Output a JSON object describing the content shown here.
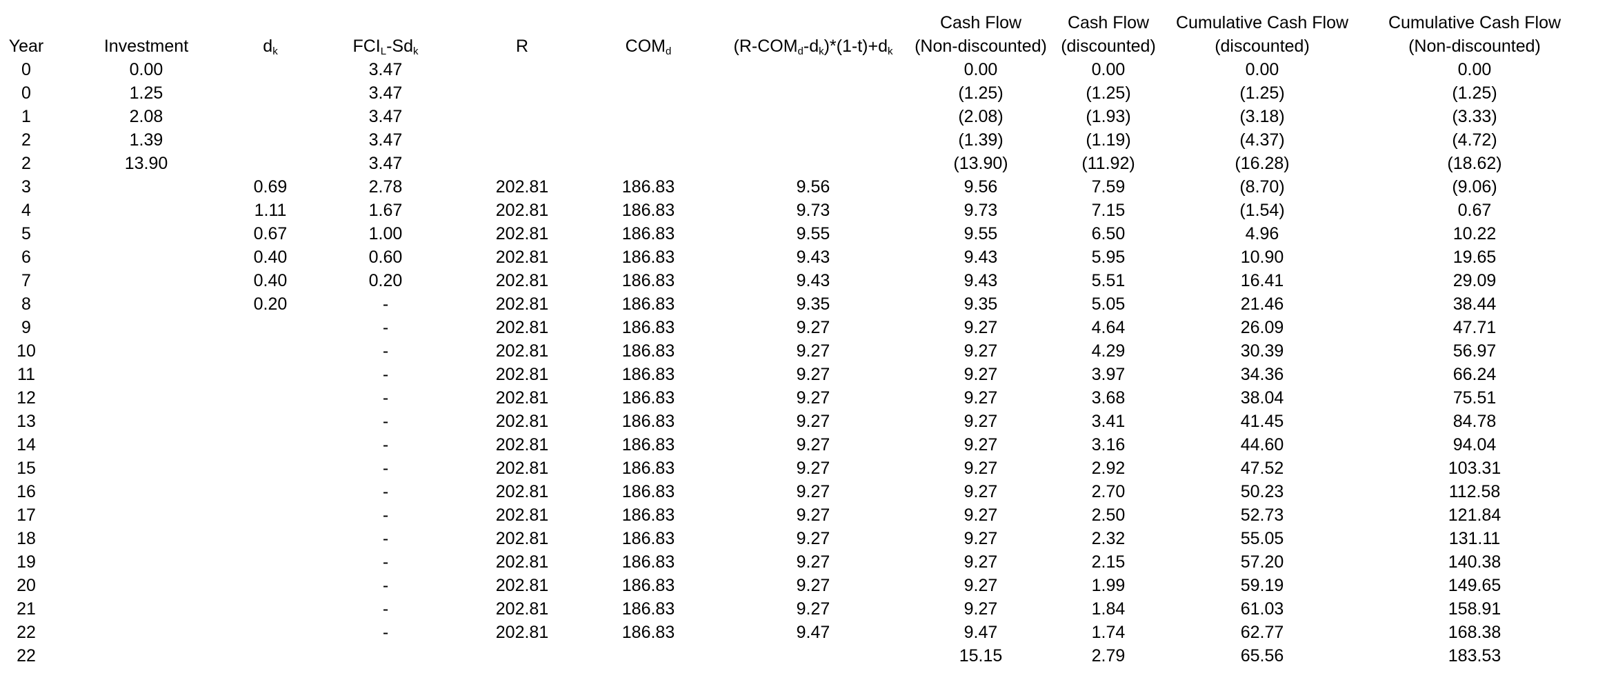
{
  "headers": {
    "year": "Year",
    "investment": "Investment",
    "dk": {
      "main": "d",
      "sub": "k"
    },
    "fcil": {
      "p1": "FCI",
      "s1": "L",
      "p2": "-Sd",
      "s2": "k"
    },
    "r": "R",
    "comd": {
      "main": "COM",
      "sub": "d"
    },
    "formula": {
      "p1": "(R-COM",
      "s1": "d",
      "p2": "-d",
      "s2": "k",
      "p3": ")*(1-t)+d",
      "s3": "k"
    },
    "cf_nd": {
      "line1": "Cash Flow",
      "line2": "(Non-discounted)"
    },
    "cf_d": {
      "line1": "Cash Flow",
      "line2": "(discounted)"
    },
    "ccf_d": {
      "line1": "Cumulative Cash Flow",
      "line2": "(discounted)"
    },
    "ccf_nd": {
      "line1": "Cumulative Cash Flow",
      "line2": "(Non-discounted)"
    }
  },
  "rows": [
    [
      "0",
      "0.00",
      "",
      "3.47",
      "",
      "",
      "",
      "0.00",
      "0.00",
      "0.00",
      "0.00"
    ],
    [
      "0",
      "1.25",
      "",
      "3.47",
      "",
      "",
      "",
      "(1.25)",
      "(1.25)",
      "(1.25)",
      "(1.25)"
    ],
    [
      "1",
      "2.08",
      "",
      "3.47",
      "",
      "",
      "",
      "(2.08)",
      "(1.93)",
      "(3.18)",
      "(3.33)"
    ],
    [
      "2",
      "1.39",
      "",
      "3.47",
      "",
      "",
      "",
      "(1.39)",
      "(1.19)",
      "(4.37)",
      "(4.72)"
    ],
    [
      "2",
      "13.90",
      "",
      "3.47",
      "",
      "",
      "",
      "(13.90)",
      "(11.92)",
      "(16.28)",
      "(18.62)"
    ],
    [
      "3",
      "",
      "0.69",
      "2.78",
      "202.81",
      "186.83",
      "9.56",
      "9.56",
      "7.59",
      "(8.70)",
      "(9.06)"
    ],
    [
      "4",
      "",
      "1.11",
      "1.67",
      "202.81",
      "186.83",
      "9.73",
      "9.73",
      "7.15",
      "(1.54)",
      "0.67"
    ],
    [
      "5",
      "",
      "0.67",
      "1.00",
      "202.81",
      "186.83",
      "9.55",
      "9.55",
      "6.50",
      "4.96",
      "10.22"
    ],
    [
      "6",
      "",
      "0.40",
      "0.60",
      "202.81",
      "186.83",
      "9.43",
      "9.43",
      "5.95",
      "10.90",
      "19.65"
    ],
    [
      "7",
      "",
      "0.40",
      "0.20",
      "202.81",
      "186.83",
      "9.43",
      "9.43",
      "5.51",
      "16.41",
      "29.09"
    ],
    [
      "8",
      "",
      "0.20",
      "-",
      "202.81",
      "186.83",
      "9.35",
      "9.35",
      "5.05",
      "21.46",
      "38.44"
    ],
    [
      "9",
      "",
      "",
      "-",
      "202.81",
      "186.83",
      "9.27",
      "9.27",
      "4.64",
      "26.09",
      "47.71"
    ],
    [
      "10",
      "",
      "",
      "-",
      "202.81",
      "186.83",
      "9.27",
      "9.27",
      "4.29",
      "30.39",
      "56.97"
    ],
    [
      "11",
      "",
      "",
      "-",
      "202.81",
      "186.83",
      "9.27",
      "9.27",
      "3.97",
      "34.36",
      "66.24"
    ],
    [
      "12",
      "",
      "",
      "-",
      "202.81",
      "186.83",
      "9.27",
      "9.27",
      "3.68",
      "38.04",
      "75.51"
    ],
    [
      "13",
      "",
      "",
      "-",
      "202.81",
      "186.83",
      "9.27",
      "9.27",
      "3.41",
      "41.45",
      "84.78"
    ],
    [
      "14",
      "",
      "",
      "-",
      "202.81",
      "186.83",
      "9.27",
      "9.27",
      "3.16",
      "44.60",
      "94.04"
    ],
    [
      "15",
      "",
      "",
      "-",
      "202.81",
      "186.83",
      "9.27",
      "9.27",
      "2.92",
      "47.52",
      "103.31"
    ],
    [
      "16",
      "",
      "",
      "-",
      "202.81",
      "186.83",
      "9.27",
      "9.27",
      "2.70",
      "50.23",
      "112.58"
    ],
    [
      "17",
      "",
      "",
      "-",
      "202.81",
      "186.83",
      "9.27",
      "9.27",
      "2.50",
      "52.73",
      "121.84"
    ],
    [
      "18",
      "",
      "",
      "-",
      "202.81",
      "186.83",
      "9.27",
      "9.27",
      "2.32",
      "55.05",
      "131.11"
    ],
    [
      "19",
      "",
      "",
      "-",
      "202.81",
      "186.83",
      "9.27",
      "9.27",
      "2.15",
      "57.20",
      "140.38"
    ],
    [
      "20",
      "",
      "",
      "-",
      "202.81",
      "186.83",
      "9.27",
      "9.27",
      "1.99",
      "59.19",
      "149.65"
    ],
    [
      "21",
      "",
      "",
      "-",
      "202.81",
      "186.83",
      "9.27",
      "9.27",
      "1.84",
      "61.03",
      "158.91"
    ],
    [
      "22",
      "",
      "",
      "-",
      "202.81",
      "186.83",
      "9.47",
      "9.47",
      "1.74",
      "62.77",
      "168.38"
    ],
    [
      "22",
      "",
      "",
      "",
      "",
      "",
      "",
      "15.15",
      "2.79",
      "65.56",
      "183.53"
    ]
  ]
}
